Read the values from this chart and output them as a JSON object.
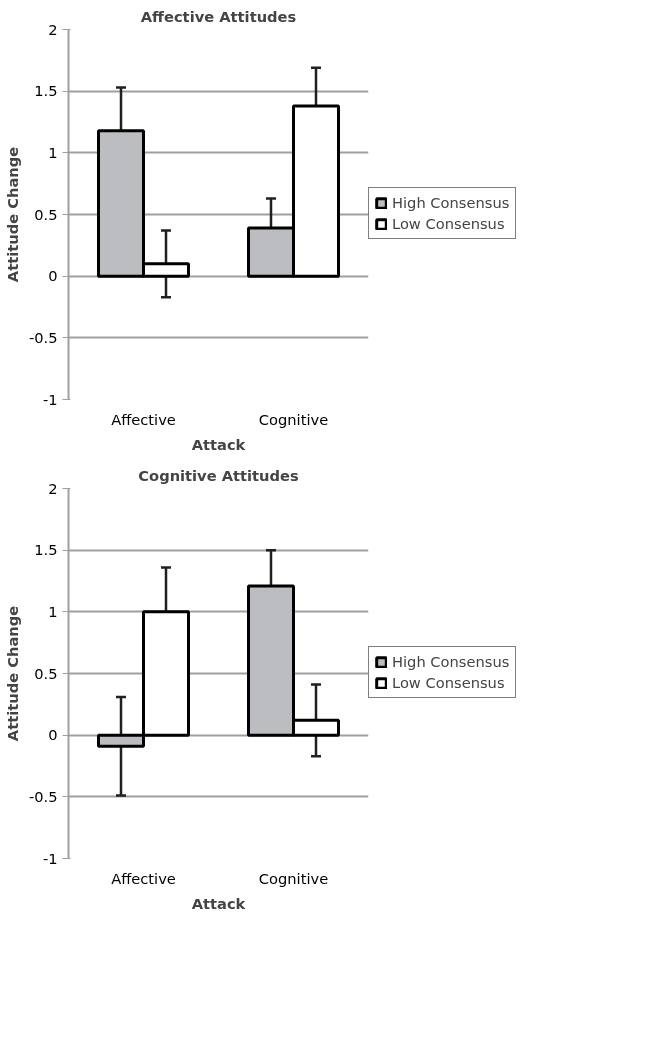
{
  "chart_data": [
    {
      "type": "bar",
      "title": "Affective Attitudes",
      "xlabel": "Attack",
      "ylabel": "Attitude Change",
      "categories": [
        "Affective",
        "Cognitive"
      ],
      "ylim": [
        -1,
        2
      ],
      "yticks": [
        -1,
        -0.5,
        0,
        0.5,
        1,
        1.5,
        2
      ],
      "grid": "y",
      "legend": "right",
      "series": [
        {
          "name": "High Consensus",
          "color": "#bcbdc0",
          "values": [
            1.18,
            0.39
          ],
          "errors": [
            0.35,
            0.24
          ]
        },
        {
          "name": "Low Consensus",
          "color": "#ffffff",
          "values": [
            0.1,
            1.38
          ],
          "errors": [
            0.27,
            0.31
          ]
        }
      ]
    },
    {
      "type": "bar",
      "title": "Cognitive Attitudes",
      "xlabel": "Attack",
      "ylabel": "Attitude Change",
      "categories": [
        "Affective",
        "Cognitive"
      ],
      "ylim": [
        -1,
        2
      ],
      "yticks": [
        -1,
        -0.5,
        0,
        0.5,
        1,
        1.5,
        2
      ],
      "grid": "y",
      "legend": "right",
      "series": [
        {
          "name": "High Consensus",
          "color": "#bcbdc0",
          "values": [
            -0.09,
            1.21
          ],
          "errors": [
            0.4,
            0.29
          ]
        },
        {
          "name": "Low Consensus",
          "color": "#ffffff",
          "values": [
            1.0,
            0.12
          ],
          "errors": [
            0.36,
            0.29
          ]
        }
      ]
    }
  ]
}
